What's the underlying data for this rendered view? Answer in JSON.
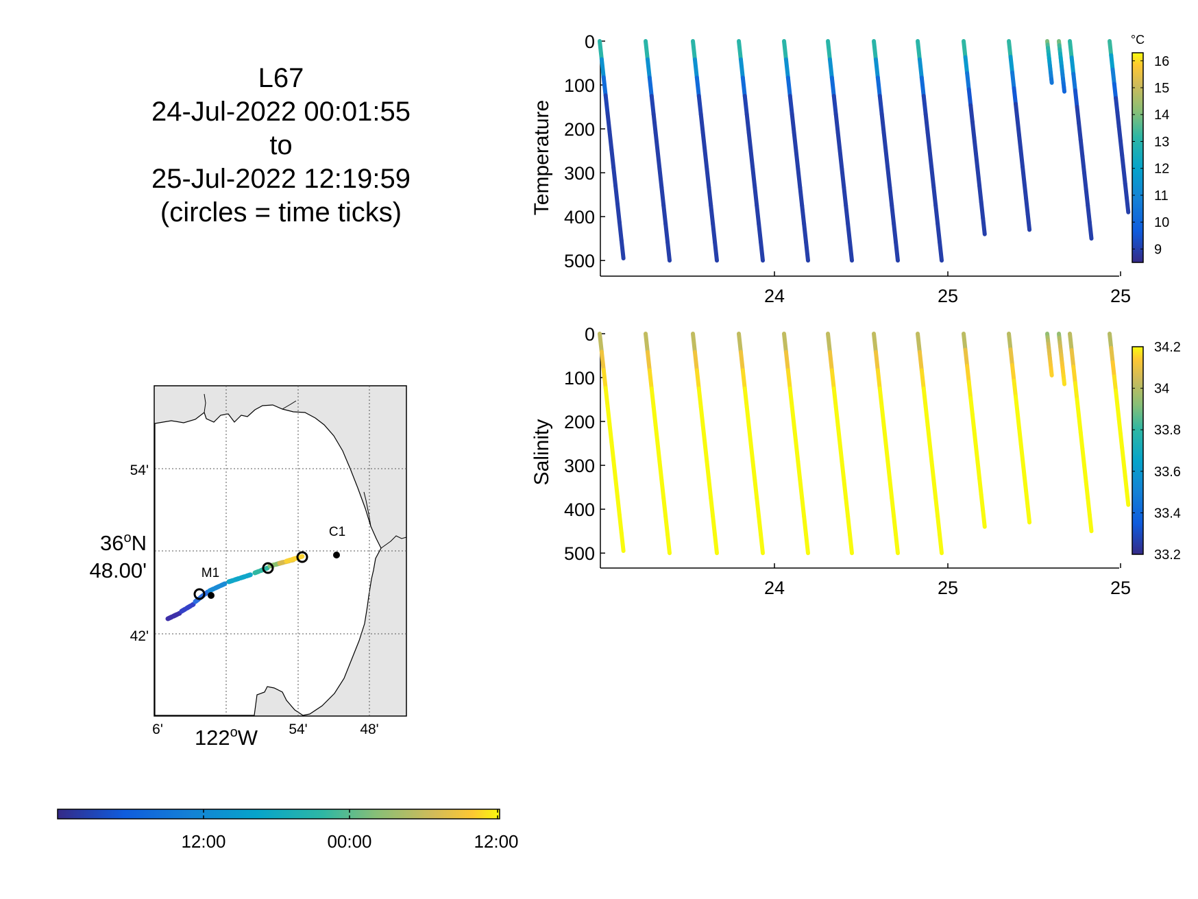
{
  "header": {
    "glider": "L67",
    "start": "24-Jul-2022 00:01:55",
    "connector": "to",
    "end": "25-Jul-2022 12:19:59",
    "note": "(circles = time ticks)"
  },
  "map": {
    "lat_ticks": [
      "54'",
      "42'"
    ],
    "lat_main": [
      "36",
      "o",
      "N",
      "48.00'"
    ],
    "lon_ticks": [
      "6'",
      "54'",
      "48'"
    ],
    "lon_main": [
      "122",
      "o",
      "W"
    ],
    "stations": [
      "C1",
      "M1"
    ],
    "land_color": "#e5e5e5",
    "sea_color": "#ffffff"
  },
  "time_colorbar": {
    "tick_labels": [
      "12:00",
      "00:00",
      "12:00"
    ],
    "colormap": "parula"
  },
  "chart_data": [
    {
      "type": "scatter",
      "ylabel": "Temperature",
      "y_reversed": true,
      "ylim": [
        0,
        520
      ],
      "yticks": [
        0,
        100,
        200,
        300,
        400,
        500
      ],
      "xtick_labels": [
        "24",
        "25",
        "25"
      ],
      "colorbar": {
        "unit": "°C",
        "ticks": [
          9,
          10,
          11,
          12,
          13,
          14,
          15,
          16
        ],
        "range": [
          8.5,
          16.3
        ],
        "colormap": "parula"
      },
      "profiles": [
        {
          "max_depth": 495
        },
        {
          "max_depth": 500
        },
        {
          "max_depth": 500
        },
        {
          "max_depth": 500
        },
        {
          "max_depth": 500
        },
        {
          "max_depth": 500
        },
        {
          "max_depth": 500
        },
        {
          "max_depth": 500
        },
        {
          "max_depth": 440
        },
        {
          "max_depth": 430
        },
        {
          "max_depth": 95
        },
        {
          "max_depth": 115
        },
        {
          "max_depth": 450
        },
        {
          "max_depth": 390
        }
      ],
      "surface_value": 13.8,
      "deep_value": 8.9
    },
    {
      "type": "scatter",
      "ylabel": "Salinity",
      "y_reversed": true,
      "ylim": [
        0,
        520
      ],
      "yticks": [
        0,
        100,
        200,
        300,
        400,
        500
      ],
      "xtick_labels": [
        "24",
        "25",
        "25"
      ],
      "colorbar": {
        "unit": "",
        "ticks": [
          33.2,
          33.4,
          33.6,
          33.8,
          34,
          34.2
        ],
        "range": [
          33.2,
          34.2
        ],
        "colormap": "parula"
      },
      "profiles": [
        {
          "max_depth": 495
        },
        {
          "max_depth": 500
        },
        {
          "max_depth": 500
        },
        {
          "max_depth": 500
        },
        {
          "max_depth": 500
        },
        {
          "max_depth": 500
        },
        {
          "max_depth": 500
        },
        {
          "max_depth": 500
        },
        {
          "max_depth": 440
        },
        {
          "max_depth": 430
        },
        {
          "max_depth": 95
        },
        {
          "max_depth": 115
        },
        {
          "max_depth": 450
        },
        {
          "max_depth": 390
        }
      ],
      "surface_value": 33.8,
      "deep_value": 34.2
    }
  ]
}
